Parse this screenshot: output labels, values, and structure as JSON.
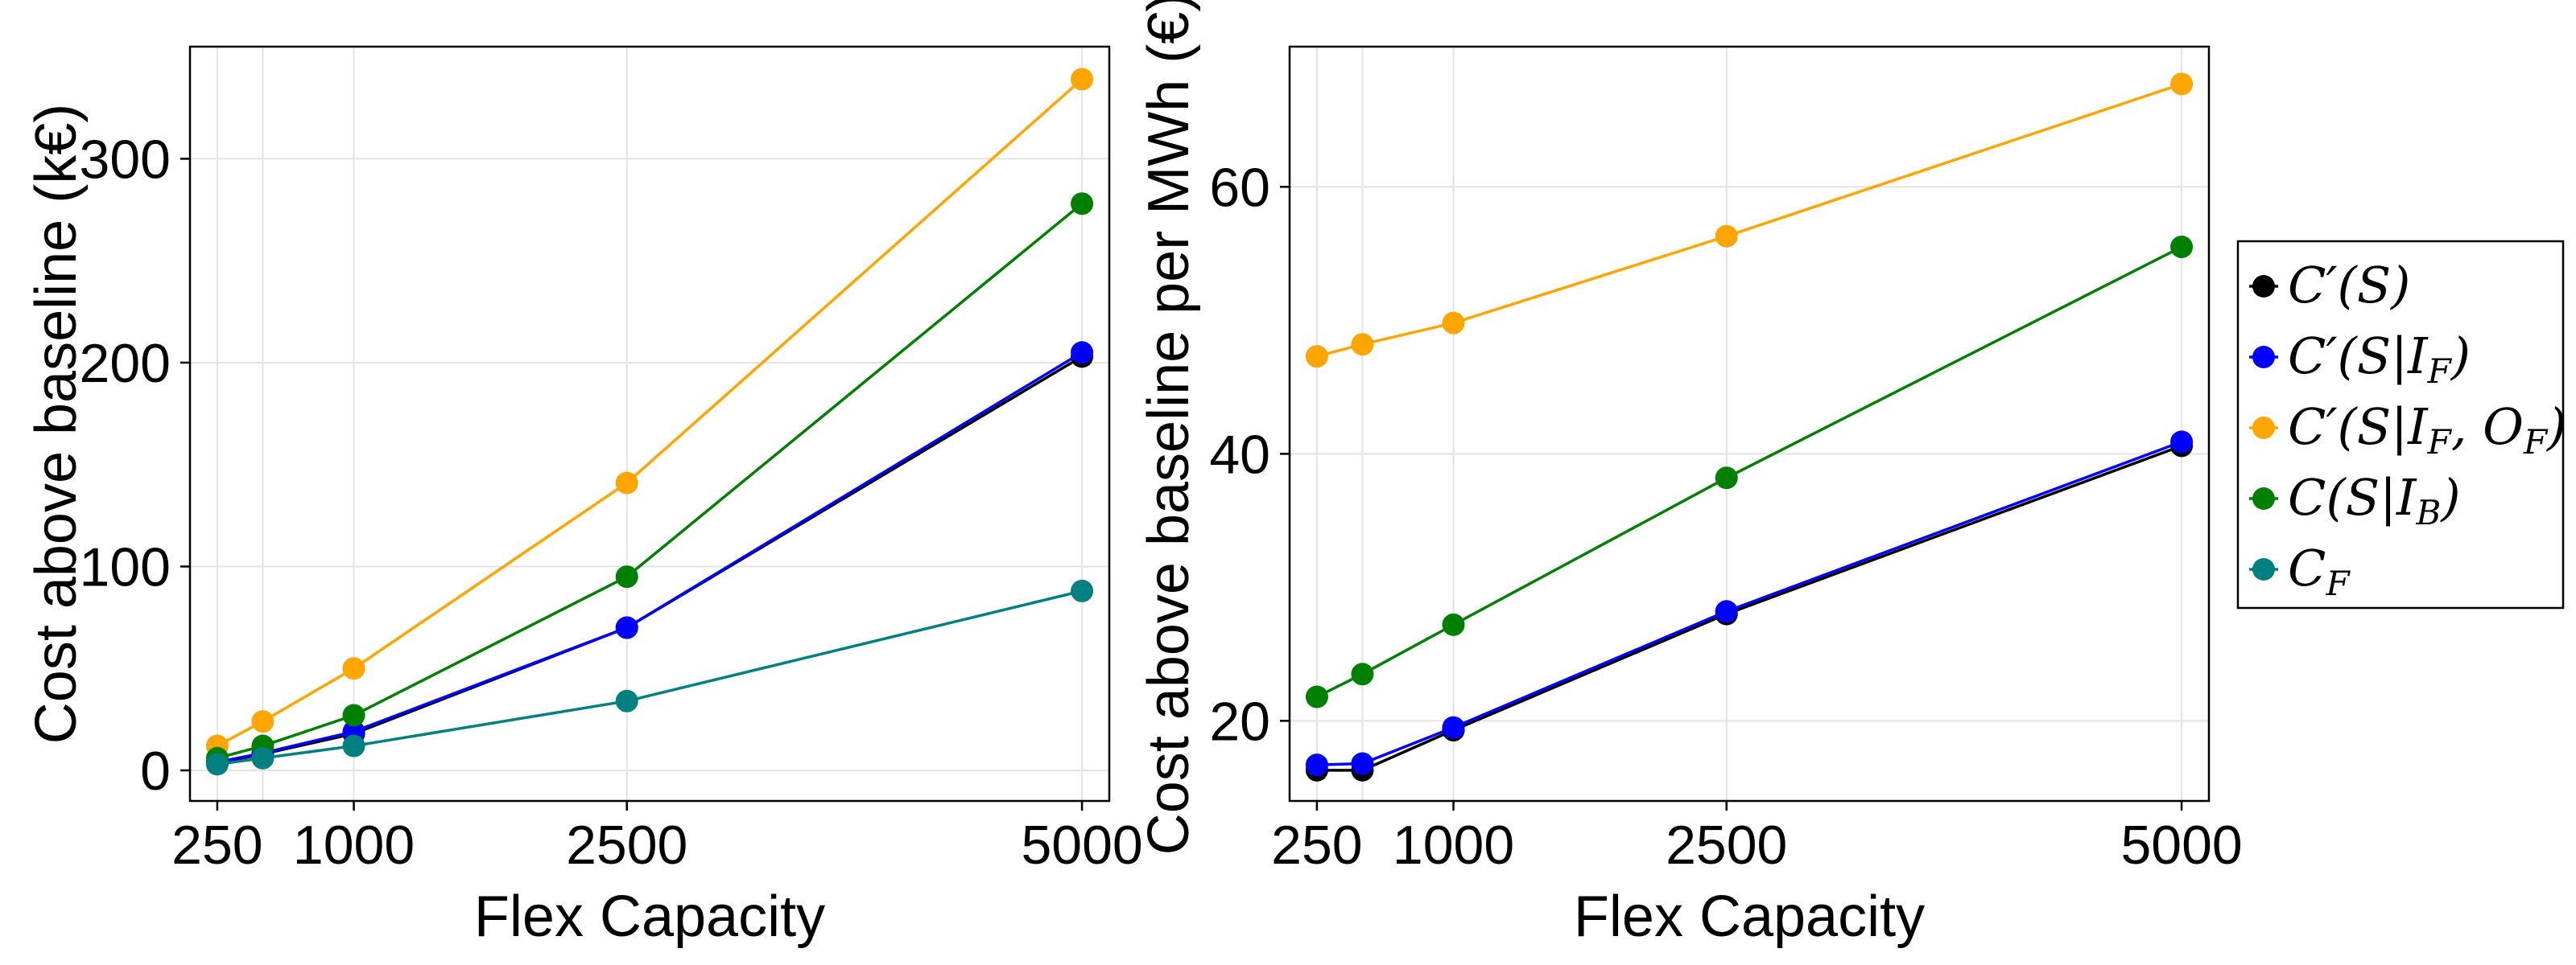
{
  "chart_data": [
    {
      "type": "line",
      "x": [
        250,
        500,
        1000,
        2500,
        5000
      ],
      "x_ticks": [
        250,
        1000,
        2500,
        5000
      ],
      "xlim": [
        100,
        5150
      ],
      "y_ticks": [
        0,
        100,
        200,
        300
      ],
      "ylim": [
        -15,
        355
      ],
      "xlabel": "Flex Capacity",
      "ylabel": "Cost above baseline (k€)",
      "grid": true,
      "series": [
        {
          "name": "C′(S)",
          "color": "#000000",
          "values": [
            3.5,
            8,
            18,
            70,
            203
          ]
        },
        {
          "name": "C′(S|I_F)",
          "color": "#0000ff",
          "values": [
            4,
            8.5,
            19,
            70,
            205
          ]
        },
        {
          "name": "C′(S|I_F, O_F)",
          "color": "#ffa500",
          "values": [
            12,
            24,
            50,
            141,
            339
          ]
        },
        {
          "name": "C(S|I_B)",
          "color": "#008000",
          "values": [
            6,
            12,
            27,
            95,
            278
          ]
        },
        {
          "name": "C_F",
          "color": "#008080",
          "values": [
            3,
            6,
            12,
            34,
            88
          ]
        }
      ]
    },
    {
      "type": "line",
      "x": [
        250,
        500,
        1000,
        2500,
        5000
      ],
      "x_ticks": [
        250,
        1000,
        2500,
        5000
      ],
      "xlim": [
        100,
        5150
      ],
      "y_ticks": [
        20,
        40,
        60
      ],
      "ylim": [
        14,
        70.5
      ],
      "xlabel": "Flex Capacity",
      "ylabel": "Cost above baseline per MWh (€)",
      "grid": true,
      "series": [
        {
          "name": "C′(S)",
          "color": "#000000",
          "values": [
            16.3,
            16.3,
            19.3,
            28,
            40.6
          ]
        },
        {
          "name": "C′(S|I_F)",
          "color": "#0000ff",
          "values": [
            16.7,
            16.8,
            19.5,
            28.2,
            40.9
          ]
        },
        {
          "name": "C′(S|I_F, O_F)",
          "color": "#ffa500",
          "values": [
            47.3,
            48.2,
            49.8,
            56.3,
            67.7
          ]
        },
        {
          "name": "C(S|I_B)",
          "color": "#008000",
          "values": [
            21.8,
            23.5,
            27.2,
            38.2,
            55.5
          ]
        },
        {
          "name": "C_F",
          "color": "#008080",
          "values": [
            null,
            null,
            null,
            null,
            null
          ]
        }
      ]
    }
  ],
  "legend": {
    "placement": "right",
    "entries": [
      {
        "base": "C′(S)",
        "sub1": "",
        "mid": "",
        "sub2": "",
        "tail": "",
        "color": "#000000"
      },
      {
        "base": "C′(S|I",
        "sub1": "F",
        "mid": ")",
        "sub2": "",
        "tail": "",
        "color": "#0000ff"
      },
      {
        "base": "C′(S|I",
        "sub1": "F",
        "mid": ", O",
        "sub2": "F",
        "tail": ")",
        "color": "#ffa500"
      },
      {
        "base": "C(S|I",
        "sub1": "B",
        "mid": ")",
        "sub2": "",
        "tail": "",
        "color": "#008000"
      },
      {
        "base": "C",
        "sub1": "F",
        "mid": "",
        "sub2": "",
        "tail": "",
        "color": "#008080"
      }
    ]
  }
}
